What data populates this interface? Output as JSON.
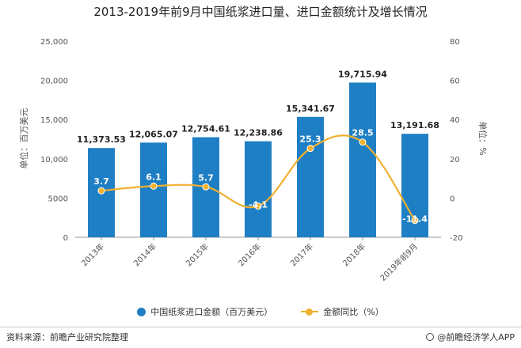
{
  "chart_data": {
    "type": "bar",
    "title": "2013-2019年前9月中国纸浆进口量、进口金额统计及增长情况",
    "categories": [
      "2013年",
      "2014年",
      "2015年",
      "2016年",
      "2017年",
      "2018年",
      "2019年前9月"
    ],
    "series": [
      {
        "name": "中国纸浆进口金额（百万美元）",
        "type": "bar",
        "axis": "left",
        "values": [
          11373.53,
          12065.07,
          12754.61,
          12238.86,
          15341.67,
          19715.94,
          13191.68
        ],
        "labels": [
          "11,373.53",
          "12,065.07",
          "12,754.61",
          "12,238.86",
          "15,341.67",
          "19,715.94",
          "13,191.68"
        ]
      },
      {
        "name": "金额同比（%）",
        "type": "line",
        "axis": "right",
        "values": [
          3.7,
          6.1,
          5.7,
          -4.1,
          25.3,
          28.5,
          -11.4
        ],
        "labels": [
          "3.7",
          "6.1",
          "5.7",
          "-4.1",
          "25.3",
          "28.5",
          "-11.4"
        ]
      }
    ],
    "ylabel": "单位：百万美元",
    "y2label": "单位：%",
    "ylim": [
      0,
      25000
    ],
    "y2lim": [
      -20,
      80
    ],
    "yticks": [
      "0",
      "5000",
      "10,000",
      "15,000",
      "20,000",
      "25,000"
    ],
    "y2ticks": [
      "-20",
      "0",
      "20",
      "40",
      "60",
      "80"
    ],
    "legend_position": "bottom",
    "grid": false
  },
  "colors": {
    "bar": "#1f7fc4",
    "line": "#f0b030",
    "axis": "#999999"
  },
  "footer": {
    "source": "资料来源：前瞻产业研究院整理",
    "brand": "@前瞻经济学人APP"
  }
}
